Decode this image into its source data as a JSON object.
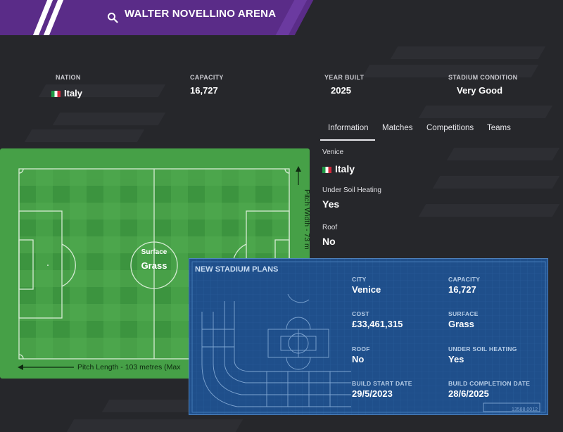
{
  "header": {
    "title": "WALTER NOVELLINO ARENA"
  },
  "stats": [
    {
      "label": "NATION",
      "value": "Italy"
    },
    {
      "label": "CAPACITY",
      "value": "16,727"
    },
    {
      "label": "YEAR BUILT",
      "value": "2025"
    },
    {
      "label": "STADIUM CONDITION",
      "value": "Very Good"
    }
  ],
  "tabs": [
    "Information",
    "Matches",
    "Competitions",
    "Teams"
  ],
  "active_tab": "Information",
  "info": [
    {
      "label": "Venice",
      "value": "Italy"
    },
    {
      "label": "Under Soil Heating",
      "value": "Yes"
    },
    {
      "label": "Roof",
      "value": "No"
    }
  ],
  "pitch": {
    "surface_label": "Surface",
    "surface_value": "Grass",
    "length_text": "Pitch Length - 103 metres (Max",
    "width_text": "Pitch Width - 73 m",
    "color": "#46a047"
  },
  "plans": {
    "title": "NEW STADIUM PLANS",
    "city_label": "CITY",
    "city_value": "Venice",
    "capacity_label": "CAPACITY",
    "capacity_value": "16,727",
    "cost_label": "COST",
    "cost_value": "£33,461,315",
    "surface_label": "SURFACE",
    "surface_value": "Grass",
    "roof_label": "ROOF",
    "roof_value": "No",
    "heating_label": "UNDER SOIL HEATING",
    "heating_value": "Yes",
    "start_label": "BUILD START DATE",
    "start_value": "29/5/2023",
    "completion_label": "BUILD COMPLETION DATE",
    "completion_value": "28/6/2025",
    "code": "13588.0012",
    "color": "#1f4f8b"
  },
  "colors": {
    "header": "#5a2c88",
    "background": "#26272b"
  },
  "icons": {
    "search": "search-icon",
    "flag": "italy-flag-icon"
  }
}
